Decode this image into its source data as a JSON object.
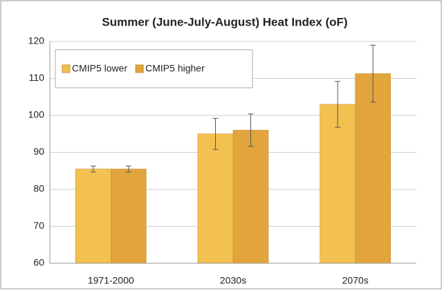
{
  "chart_data": {
    "type": "bar",
    "title": "Summer (June-July-August) Heat Index (oF)",
    "categories": [
      "1971-2000",
      "2030s",
      "2070s"
    ],
    "series": [
      {
        "name": "CMIP5 lower",
        "color": "#f3c14f",
        "values": [
          85.5,
          95,
          103
        ],
        "errors": [
          0.8,
          4.2,
          6.2
        ]
      },
      {
        "name": "CMIP5 higher",
        "color": "#e2a53e",
        "values": [
          85.5,
          96,
          111.3
        ],
        "errors": [
          0.8,
          4.4,
          7.7
        ]
      }
    ],
    "ylim": [
      60,
      120
    ],
    "yticks": [
      60,
      70,
      80,
      90,
      100,
      110,
      120
    ],
    "grid": true,
    "legend": "top-left"
  }
}
